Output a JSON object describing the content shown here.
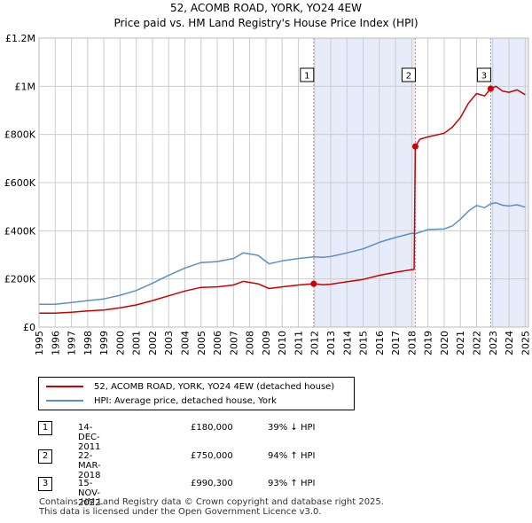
{
  "title": {
    "line1": "52, ACOMB ROAD, YORK, YO24 4EW",
    "line2": "Price paid vs. HM Land Registry's House Price Index (HPI)"
  },
  "colors": {
    "price_line": "#cc0000",
    "hpi_line": "#5b8fc9",
    "shade": "#dde6f8",
    "grid": "#cccccc",
    "marker_line": "#e08080"
  },
  "legend": {
    "items": [
      {
        "label": "52, ACOMB ROAD, YORK, YO24 4EW (detached house)",
        "color": "#cc0000"
      },
      {
        "label": "HPI: Average price, detached house, York",
        "color": "#5b8fc9"
      }
    ]
  },
  "transactions": [
    {
      "num": "1",
      "date": "14-DEC-2011",
      "price": "£180,000",
      "hpi": "39% ↓ HPI"
    },
    {
      "num": "2",
      "date": "22-MAR-2018",
      "price": "£750,000",
      "hpi": "94% ↑ HPI"
    },
    {
      "num": "3",
      "date": "15-NOV-2022",
      "price": "£990,300",
      "hpi": "93% ↑ HPI"
    }
  ],
  "footer": {
    "line1": "Contains HM Land Registry data © Crown copyright and database right 2025.",
    "line2": "This data is licensed under the Open Government Licence v3.0."
  },
  "chart_data": {
    "type": "line",
    "title": "Price paid vs. HM Land Registry's House Price Index (HPI)",
    "xlabel": "",
    "ylabel": "",
    "xlim": [
      1995,
      2025.2
    ],
    "ylim": [
      0,
      1200000
    ],
    "yticks": [
      {
        "value": 0,
        "label": "£0"
      },
      {
        "value": 200000,
        "label": "£200K"
      },
      {
        "value": 400000,
        "label": "£400K"
      },
      {
        "value": 600000,
        "label": "£600K"
      },
      {
        "value": 800000,
        "label": "£800K"
      },
      {
        "value": 1000000,
        "label": "£1M"
      },
      {
        "value": 1200000,
        "label": "£1.2M"
      }
    ],
    "xticks": [
      "1995",
      "1996",
      "1997",
      "1998",
      "1999",
      "2000",
      "2001",
      "2002",
      "2003",
      "2004",
      "2005",
      "2006",
      "2007",
      "2008",
      "2009",
      "2010",
      "2011",
      "2012",
      "2013",
      "2014",
      "2015",
      "2016",
      "2017",
      "2018",
      "2019",
      "2020",
      "2021",
      "2022",
      "2023",
      "2024",
      "2025"
    ],
    "shaded_ranges": [
      [
        2011.95,
        2018.22
      ],
      [
        2022.87,
        2025.2
      ]
    ],
    "markers": [
      {
        "label": "1",
        "x": 2011.95,
        "y": 180000
      },
      {
        "label": "2",
        "x": 2018.22,
        "y": 750000
      },
      {
        "label": "3",
        "x": 2022.87,
        "y": 990300
      }
    ],
    "series": [
      {
        "name": "52, ACOMB ROAD, YORK, YO24 4EW (detached house)",
        "color": "#cc0000",
        "x": [
          1995,
          1996,
          1997,
          1998,
          1999,
          2000,
          2001,
          2002,
          2003,
          2004,
          2005,
          2006,
          2007,
          2007.6,
          2008.5,
          2009.2,
          2010,
          2011,
          2011.95,
          2012.5,
          2013,
          2014,
          2015,
          2016,
          2017,
          2018.15,
          2018.22,
          2018.5,
          2019,
          2020,
          2020.5,
          2021,
          2021.5,
          2022,
          2022.5,
          2022.87,
          2023.2,
          2023.6,
          2024,
          2024.5,
          2025
        ],
        "values": [
          58000,
          58000,
          62000,
          67000,
          71000,
          80000,
          92000,
          110000,
          130000,
          150000,
          165000,
          167000,
          175000,
          190000,
          180000,
          160000,
          167000,
          175000,
          180000,
          176000,
          178000,
          188000,
          198000,
          215000,
          228000,
          240000,
          750000,
          780000,
          790000,
          805000,
          830000,
          870000,
          930000,
          970000,
          960000,
          990300,
          1000000,
          980000,
          975000,
          985000,
          965000
        ]
      },
      {
        "name": "HPI: Average price, detached house, York",
        "color": "#5b8fc9",
        "x": [
          1995,
          1996,
          1997,
          1998,
          1999,
          2000,
          2001,
          2002,
          2003,
          2004,
          2005,
          2006,
          2007,
          2007.6,
          2008.5,
          2009.2,
          2010,
          2011,
          2011.95,
          2012.5,
          2013,
          2014,
          2015,
          2016,
          2017,
          2018,
          2018.22,
          2019,
          2020,
          2020.5,
          2021,
          2021.5,
          2022,
          2022.5,
          2022.87,
          2023.2,
          2023.6,
          2024,
          2024.5,
          2025
        ],
        "values": [
          95000,
          95000,
          102000,
          110000,
          117000,
          132000,
          152000,
          182000,
          215000,
          245000,
          268000,
          272000,
          285000,
          308000,
          298000,
          263000,
          275000,
          285000,
          292000,
          290000,
          293000,
          308000,
          325000,
          352000,
          372000,
          390000,
          388000,
          405000,
          408000,
          420000,
          448000,
          482000,
          505000,
          496000,
          512000,
          516000,
          506000,
          503000,
          508000,
          498000
        ]
      }
    ]
  }
}
